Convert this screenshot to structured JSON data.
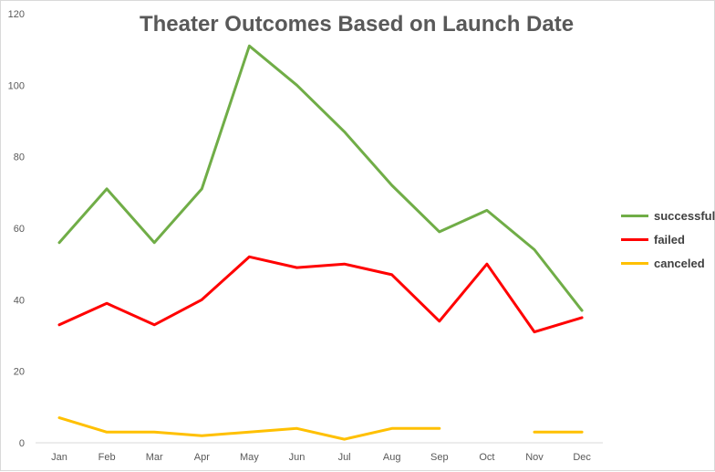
{
  "chart_data": {
    "type": "line",
    "title": "Theater Outcomes Based on Launch Date",
    "xlabel": "",
    "ylabel": "",
    "categories": [
      "Jan",
      "Feb",
      "Mar",
      "Apr",
      "May",
      "Jun",
      "Jul",
      "Aug",
      "Sep",
      "Oct",
      "Nov",
      "Dec"
    ],
    "ylim": [
      0,
      120
    ],
    "yticks": [
      0,
      20,
      40,
      60,
      80,
      100,
      120
    ],
    "grid": false,
    "legend_position": "right",
    "series": [
      {
        "name": "successful",
        "color": "#70ad47",
        "values": [
          56,
          71,
          56,
          71,
          111,
          100,
          87,
          72,
          59,
          65,
          54,
          37
        ]
      },
      {
        "name": "failed",
        "color": "#ff0000",
        "values": [
          33,
          39,
          33,
          40,
          52,
          49,
          50,
          47,
          34,
          50,
          31,
          35
        ]
      },
      {
        "name": "canceled",
        "color": "#ffc000",
        "values": [
          7,
          3,
          3,
          2,
          3,
          4,
          1,
          4,
          4,
          null,
          3,
          3
        ]
      }
    ]
  }
}
